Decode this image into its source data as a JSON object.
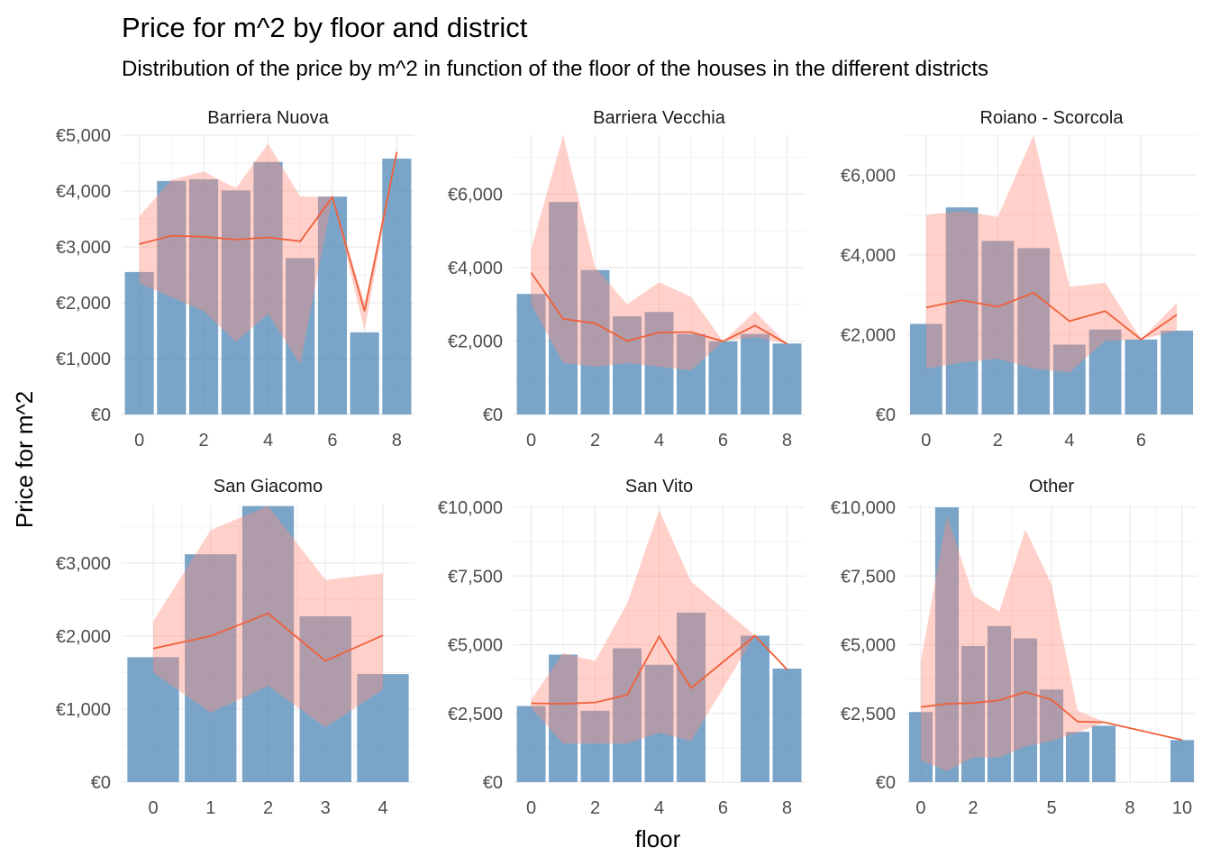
{
  "chart_data": {
    "type": "bar",
    "title": "Price for m^2 by floor and district",
    "subtitle": "Distribution of the price by m^2 in function of the floor of the houses in the different districts",
    "xlabel": "floor",
    "ylabel": "Price for m^2",
    "grid": true,
    "colors": {
      "bar": "#4682b4",
      "band": "#ff8c7a",
      "line": "#f0603a"
    },
    "panels": [
      {
        "name": "Barriera Nuova",
        "xlim": [
          -0.55,
          8.55
        ],
        "ylim": [
          0,
          5000
        ],
        "x_ticks": [
          0,
          2,
          4,
          6,
          8
        ],
        "y_ticks": [
          0,
          1000,
          2000,
          3000,
          4000,
          5000
        ],
        "y_tick_labels": [
          "€0",
          "€1,000",
          "€2,000",
          "€3,000",
          "€4,000",
          "€5,000"
        ],
        "bars": {
          "x": [
            0,
            1,
            2,
            3,
            4,
            5,
            6,
            7,
            8
          ],
          "values": [
            2550,
            4180,
            4210,
            4010,
            4520,
            2800,
            3900,
            1470,
            4580
          ]
        },
        "line": {
          "x": [
            0,
            1,
            2,
            3,
            4,
            5,
            6,
            7,
            8
          ],
          "values": [
            3050,
            3200,
            3180,
            3130,
            3170,
            3100,
            3890,
            1850,
            4700
          ]
        },
        "band": {
          "x": [
            0,
            1,
            2,
            3,
            4,
            5,
            6,
            7,
            8
          ],
          "lower": [
            2350,
            2100,
            1850,
            1300,
            1800,
            900,
            3880,
            1500,
            4700
          ],
          "upper": [
            3550,
            4200,
            4350,
            4050,
            4850,
            3900,
            3900,
            2000,
            4700
          ]
        }
      },
      {
        "name": "Barriera Vecchia",
        "xlim": [
          -0.55,
          8.55
        ],
        "ylim": [
          0,
          7600
        ],
        "x_ticks": [
          0,
          2,
          4,
          6,
          8
        ],
        "y_ticks": [
          0,
          2000,
          4000,
          6000
        ],
        "y_tick_labels": [
          "€0",
          "€2,000",
          "€4,000",
          "€6,000"
        ],
        "bars": {
          "x": [
            0,
            1,
            2,
            3,
            4,
            5,
            6,
            7,
            8
          ],
          "values": [
            3280,
            5780,
            3930,
            2670,
            2790,
            2190,
            1990,
            2190,
            1930
          ]
        },
        "line": {
          "x": [
            0,
            1,
            2,
            3,
            4,
            5,
            6,
            7,
            8
          ],
          "values": [
            3860,
            2600,
            2480,
            2000,
            2230,
            2240,
            1990,
            2420,
            1920
          ]
        },
        "band": {
          "x": [
            0,
            1,
            2,
            3,
            4,
            5,
            6,
            7,
            8
          ],
          "lower": [
            3000,
            1400,
            1300,
            1400,
            1300,
            1200,
            1990,
            2100,
            1920
          ],
          "upper": [
            4500,
            7600,
            4000,
            3000,
            3600,
            3200,
            1990,
            2800,
            1920
          ]
        }
      },
      {
        "name": "Roiano - Scorcola",
        "xlim": [
          -0.55,
          7.55
        ],
        "ylim": [
          0,
          7000
        ],
        "x_ticks": [
          0,
          2,
          4,
          6
        ],
        "y_ticks": [
          0,
          2000,
          4000,
          6000
        ],
        "y_tick_labels": [
          "€0",
          "€2,000",
          "€4,000",
          "€6,000"
        ],
        "bars": {
          "x": [
            0,
            1,
            2,
            3,
            4,
            5,
            6,
            7
          ],
          "values": [
            2270,
            5190,
            4350,
            4170,
            1750,
            2130,
            1880,
            2100
          ]
        },
        "line": {
          "x": [
            0,
            1,
            2,
            3,
            4,
            5,
            6,
            7
          ],
          "values": [
            2680,
            2860,
            2700,
            3050,
            2340,
            2590,
            1880,
            2500
          ]
        },
        "band": {
          "x": [
            0,
            1,
            2,
            3,
            4,
            5,
            6,
            7
          ],
          "lower": [
            1150,
            1300,
            1400,
            1150,
            1050,
            1850,
            1880,
            2100
          ],
          "upper": [
            5000,
            5100,
            4950,
            7000,
            3200,
            3300,
            1880,
            2800
          ]
        }
      },
      {
        "name": "San Giacomo",
        "xlim": [
          -0.55,
          4.55
        ],
        "ylim": [
          0,
          3800
        ],
        "x_ticks": [
          0,
          1,
          2,
          3,
          4
        ],
        "y_ticks": [
          0,
          1000,
          2000,
          3000
        ],
        "y_tick_labels": [
          "€0",
          "€1,000",
          "€2,000",
          "€3,000"
        ],
        "bars": {
          "x": [
            0,
            1,
            2,
            3,
            4
          ],
          "values": [
            1710,
            3120,
            3780,
            2270,
            1480
          ]
        },
        "line": {
          "x": [
            0,
            1,
            2,
            3,
            4
          ],
          "values": [
            1830,
            2000,
            2310,
            1660,
            2010
          ]
        },
        "band": {
          "x": [
            0,
            1,
            2,
            3,
            4
          ],
          "lower": [
            1500,
            950,
            1320,
            750,
            1270
          ],
          "upper": [
            2200,
            3450,
            3780,
            2770,
            2860
          ]
        }
      },
      {
        "name": "San Vito",
        "xlim": [
          -0.55,
          8.55
        ],
        "ylim": [
          0,
          10100
        ],
        "x_ticks": [
          0,
          2,
          4,
          6,
          8
        ],
        "y_ticks": [
          0,
          2500,
          5000,
          7500,
          10000
        ],
        "y_tick_labels": [
          "€0",
          "€2,500",
          "€5,000",
          "€7,500",
          "€10,000"
        ],
        "bars": {
          "x": [
            0,
            1,
            2,
            3,
            4,
            5,
            7,
            8
          ],
          "values": [
            2770,
            4640,
            2600,
            4870,
            4270,
            6170,
            5330,
            4130
          ]
        },
        "line": {
          "x": [
            0,
            1,
            2,
            3,
            4,
            5,
            7,
            8
          ],
          "values": [
            2870,
            2850,
            2900,
            3170,
            5300,
            3420,
            5330,
            4100
          ]
        },
        "band": {
          "x": [
            0,
            1,
            2,
            3,
            4,
            5,
            7,
            8
          ],
          "lower": [
            2700,
            1400,
            1400,
            1400,
            1800,
            1500,
            5330,
            4100
          ],
          "upper": [
            3000,
            4700,
            4400,
            6500,
            9900,
            7300,
            5330,
            4100
          ]
        }
      },
      {
        "name": "Other",
        "xlim": [
          -0.55,
          10.55
        ],
        "ylim": [
          0,
          10100
        ],
        "x_ticks": [
          0,
          2,
          5,
          8,
          10
        ],
        "y_ticks": [
          0,
          2500,
          5000,
          7500,
          10000
        ],
        "y_tick_labels": [
          "€0",
          "€2,500",
          "€5,000",
          "€7,500",
          "€10,000"
        ],
        "bars": {
          "x": [
            0,
            1,
            2,
            3,
            4,
            5,
            6,
            7,
            10
          ],
          "values": [
            2550,
            10000,
            4950,
            5680,
            5230,
            3370,
            1830,
            2050,
            1530
          ]
        },
        "line": {
          "x": [
            0,
            1,
            2,
            3,
            4,
            5,
            6,
            7,
            10
          ],
          "values": [
            2730,
            2850,
            2880,
            2980,
            3280,
            3000,
            2200,
            2180,
            1530
          ]
        },
        "band": {
          "x": [
            0,
            1,
            2,
            3,
            4,
            5,
            6,
            7,
            10
          ],
          "lower": [
            800,
            400,
            900,
            900,
            1300,
            1500,
            1800,
            2150,
            1530
          ],
          "upper": [
            4400,
            9700,
            6800,
            6200,
            9200,
            7200,
            2600,
            2200,
            1530
          ]
        }
      }
    ]
  }
}
